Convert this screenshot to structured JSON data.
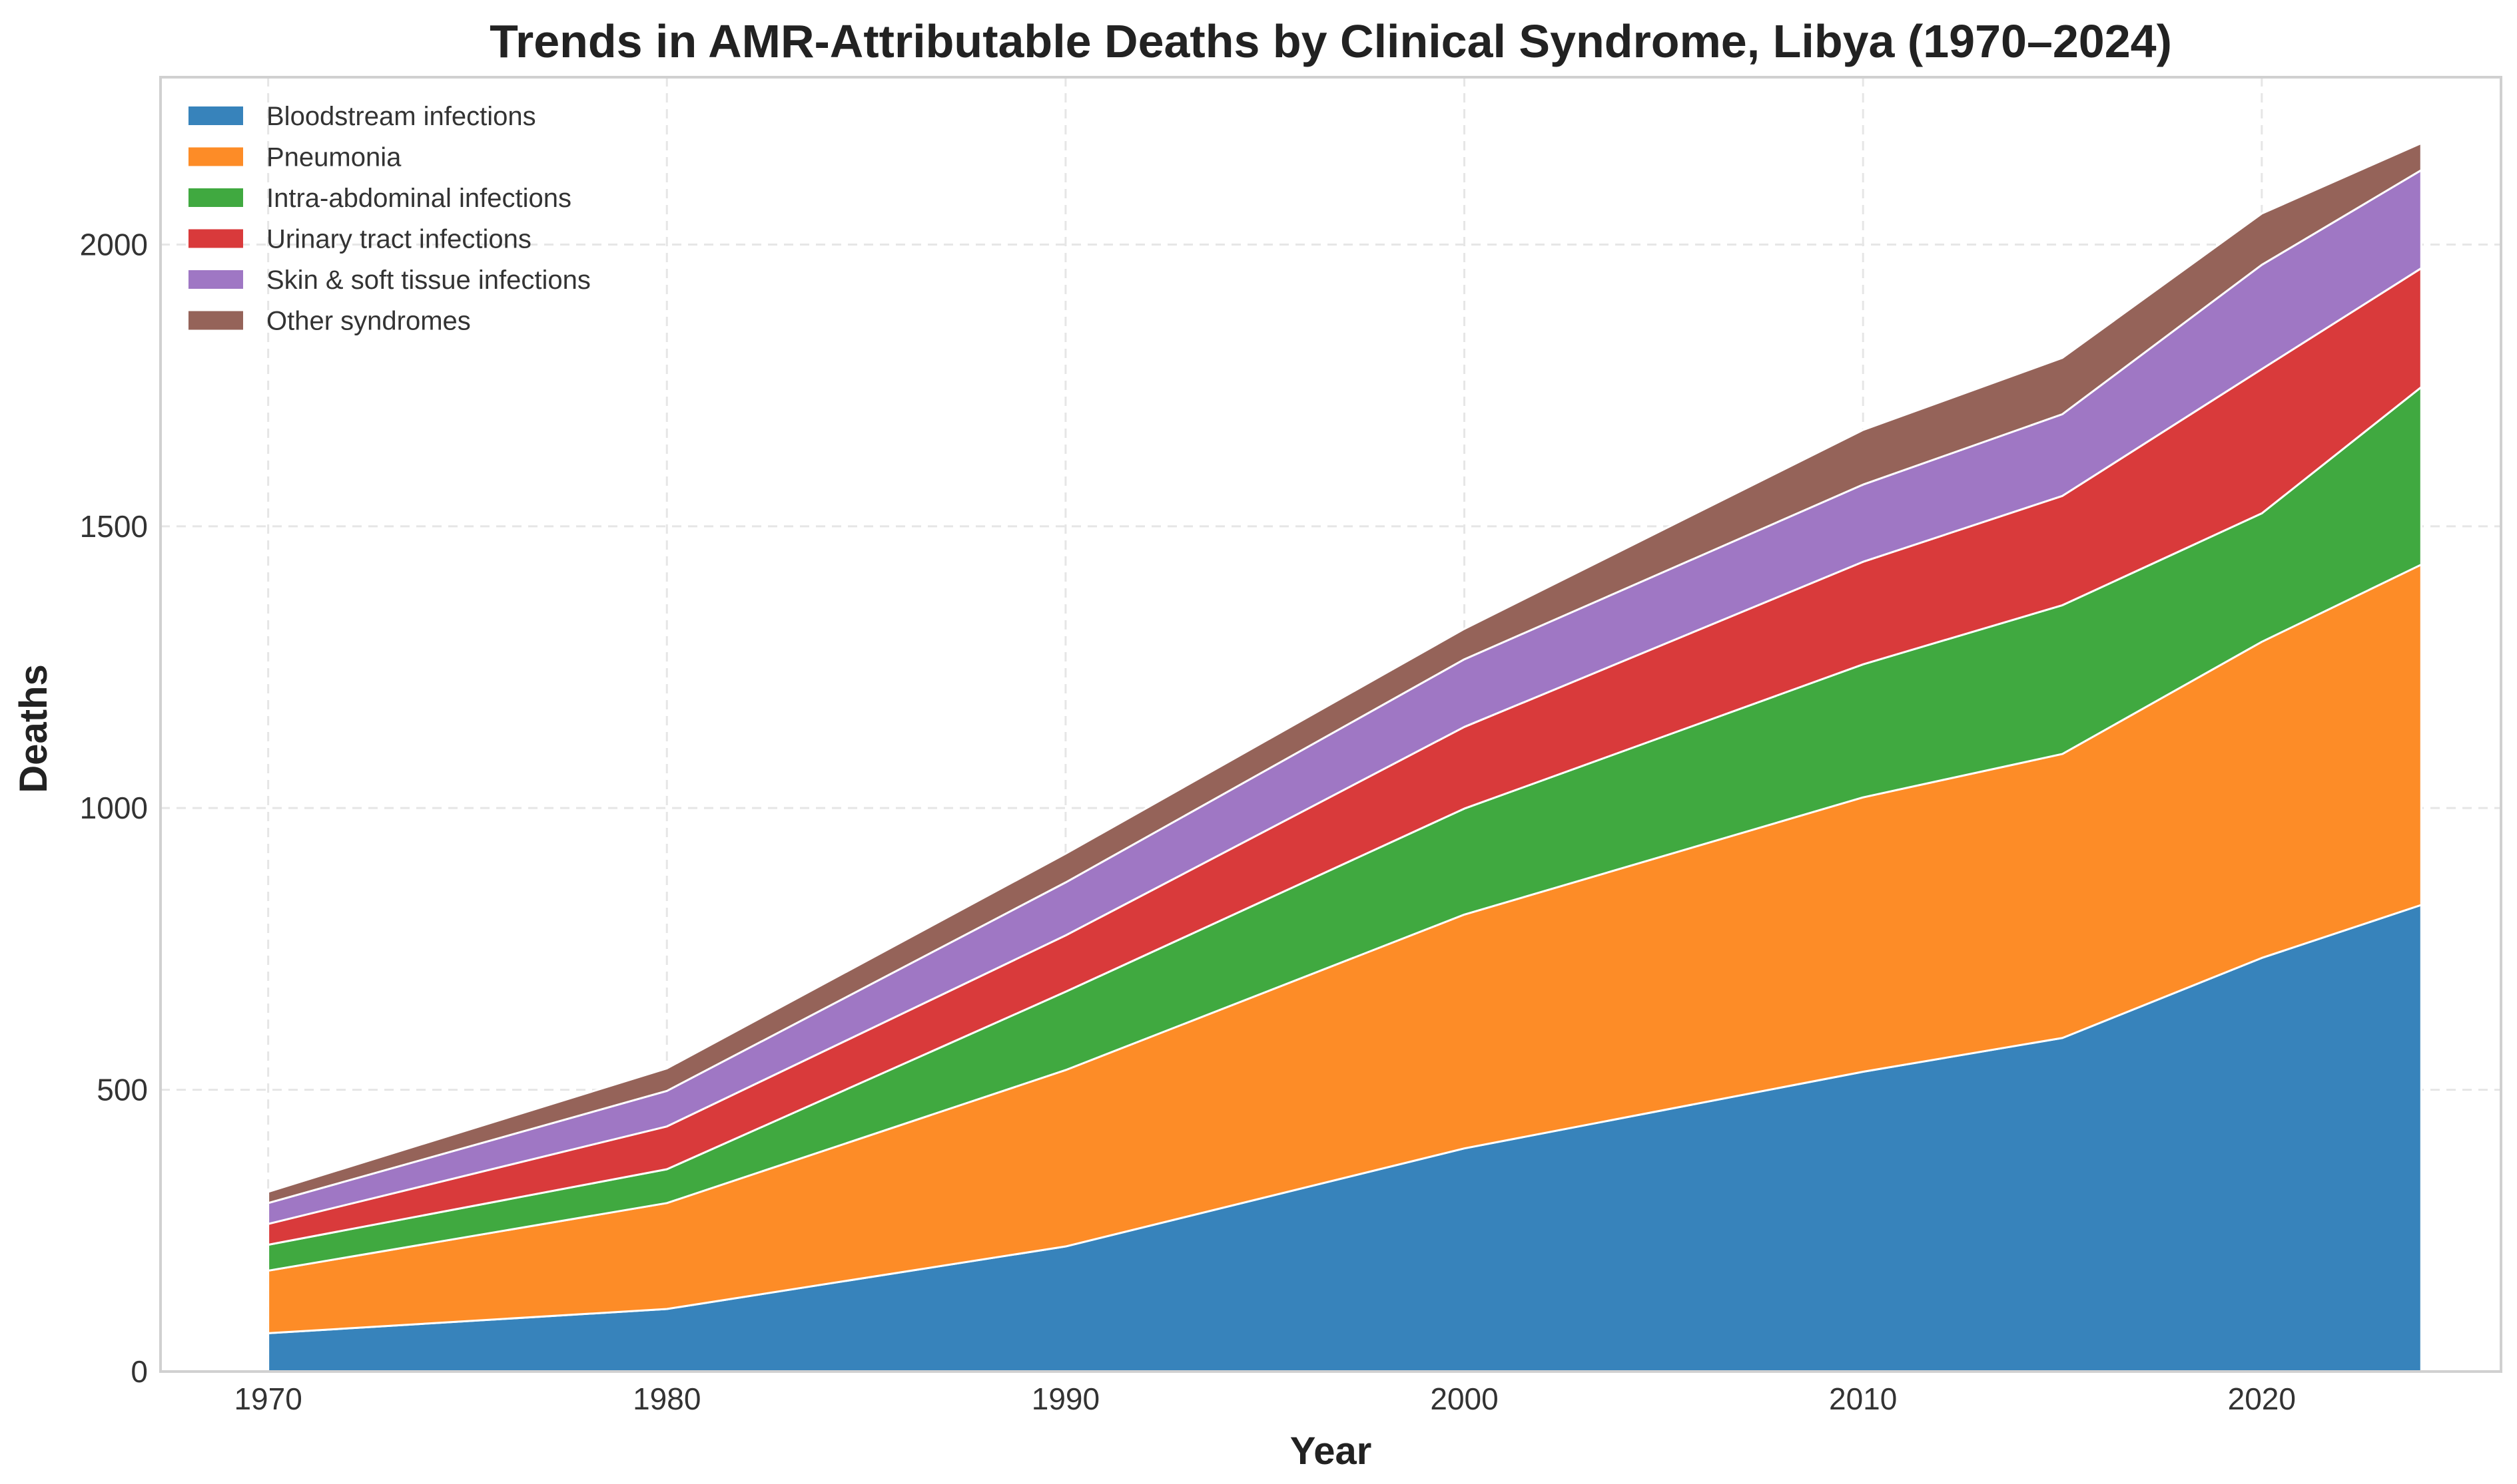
{
  "chart_data": {
    "type": "area",
    "stacked": true,
    "title": "Trends in AMR-Attributable Deaths by Clinical Syndrome, Libya (1970–2024)",
    "xlabel": "Year",
    "ylabel": "Deaths",
    "x": [
      1970,
      1980,
      1990,
      2000,
      2010,
      2015,
      2020,
      2024
    ],
    "xlim": [
      1967.3,
      2026
    ],
    "ylim": [
      0,
      2297
    ],
    "xticks": [
      1970,
      1980,
      1990,
      2000,
      2010,
      2020
    ],
    "yticks": [
      0,
      500,
      1000,
      1500,
      2000
    ],
    "grid": true,
    "legend_position": "top-left",
    "series": [
      {
        "name": "Bloodstream infections",
        "color": "#3783bb",
        "values": [
          68,
          111,
          222,
          396,
          532,
          592,
          734,
          828
        ]
      },
      {
        "name": "Pneumonia",
        "color": "#fd8c27",
        "values": [
          111,
          188,
          313,
          415,
          487,
          504,
          561,
          604
        ]
      },
      {
        "name": "Intra-abdominal infections",
        "color": "#40a940",
        "values": [
          46,
          60,
          139,
          188,
          236,
          264,
          228,
          315
        ]
      },
      {
        "name": "Urinary tract infections",
        "color": "#d93a3b",
        "values": [
          37,
          76,
          100,
          145,
          182,
          194,
          256,
          211
        ]
      },
      {
        "name": "Skin & soft tissue infections",
        "color": "#9f77c4",
        "values": [
          37,
          63,
          94,
          120,
          137,
          145,
          185,
          174
        ]
      },
      {
        "name": "Other syndromes",
        "color": "#956359",
        "values": [
          20,
          40,
          51,
          54,
          97,
          100,
          91,
          48
        ]
      }
    ]
  }
}
